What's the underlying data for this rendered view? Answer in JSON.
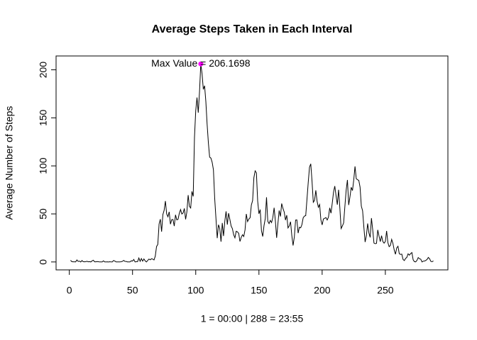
{
  "chart_data": {
    "type": "line",
    "title": "Average Steps Taken in Each Interval",
    "xlabel": "1 = 00:00 | 288 = 23:55",
    "ylabel": "Average Number of Steps",
    "color": "#000000",
    "x": [
      1,
      2,
      3,
      4,
      5,
      6,
      7,
      8,
      9,
      10,
      11,
      12,
      13,
      14,
      15,
      16,
      17,
      18,
      19,
      20,
      21,
      22,
      23,
      24,
      25,
      26,
      27,
      28,
      29,
      30,
      31,
      32,
      33,
      34,
      35,
      36,
      37,
      38,
      39,
      40,
      41,
      42,
      43,
      44,
      45,
      46,
      47,
      48,
      49,
      50,
      51,
      52,
      53,
      54,
      55,
      56,
      57,
      58,
      59,
      60,
      61,
      62,
      63,
      64,
      65,
      66,
      67,
      68,
      69,
      70,
      71,
      72,
      73,
      74,
      75,
      76,
      77,
      78,
      79,
      80,
      81,
      82,
      83,
      84,
      85,
      86,
      87,
      88,
      89,
      90,
      91,
      92,
      93,
      94,
      95,
      96,
      97,
      98,
      99,
      100,
      101,
      102,
      103,
      104,
      105,
      106,
      107,
      108,
      109,
      110,
      111,
      112,
      113,
      114,
      115,
      116,
      117,
      118,
      119,
      120,
      121,
      122,
      123,
      124,
      125,
      126,
      127,
      128,
      129,
      130,
      131,
      132,
      133,
      134,
      135,
      136,
      137,
      138,
      139,
      140,
      141,
      142,
      143,
      144,
      145,
      146,
      147,
      148,
      149,
      150,
      151,
      152,
      153,
      154,
      155,
      156,
      157,
      158,
      159,
      160,
      161,
      162,
      163,
      164,
      165,
      166,
      167,
      168,
      169,
      170,
      171,
      172,
      173,
      174,
      175,
      176,
      177,
      178,
      179,
      180,
      181,
      182,
      183,
      184,
      185,
      186,
      187,
      188,
      189,
      190,
      191,
      192,
      193,
      194,
      195,
      196,
      197,
      198,
      199,
      200,
      201,
      202,
      203,
      204,
      205,
      206,
      207,
      208,
      209,
      210,
      211,
      212,
      213,
      214,
      215,
      216,
      217,
      218,
      219,
      220,
      221,
      222,
      223,
      224,
      225,
      226,
      227,
      228,
      229,
      230,
      231,
      232,
      233,
      234,
      235,
      236,
      237,
      238,
      239,
      240,
      241,
      242,
      243,
      244,
      245,
      246,
      247,
      248,
      249,
      250,
      251,
      252,
      253,
      254,
      255,
      256,
      257,
      258,
      259,
      260,
      261,
      262,
      263,
      264,
      265,
      266,
      267,
      268,
      269,
      270,
      271,
      272,
      273,
      274,
      275,
      276,
      277,
      278,
      279,
      280,
      281,
      282,
      283,
      284,
      285,
      286,
      287,
      288
    ],
    "values": [
      1.72,
      0.34,
      0.13,
      0.15,
      0.08,
      2.09,
      0.53,
      0.87,
      0,
      1.47,
      0.3,
      0.13,
      0.32,
      0.68,
      0.15,
      0.34,
      0,
      1.11,
      1.83,
      0.17,
      0.17,
      0.38,
      0.26,
      0,
      0,
      0,
      1.13,
      0,
      0,
      0.13,
      0,
      0.23,
      0,
      0,
      1.55,
      0.94,
      0,
      0,
      0,
      0,
      0.21,
      0.62,
      1.62,
      0.58,
      0.49,
      0.08,
      0,
      0,
      1.19,
      0.94,
      2.57,
      0,
      0.34,
      0.36,
      4.11,
      0.66,
      3.49,
      0.83,
      3.11,
      1.11,
      0,
      1.57,
      3,
      2.25,
      3.32,
      2.96,
      2.09,
      6.06,
      16.02,
      18.34,
      39.45,
      44.49,
      31.49,
      49.26,
      53.77,
      63.45,
      49.96,
      47.08,
      52.15,
      39.34,
      44.02,
      44.17,
      37.36,
      49.04,
      43.81,
      44.38,
      50.51,
      54.51,
      49.92,
      50.98,
      55.68,
      44.32,
      52.26,
      69.55,
      57.85,
      56.15,
      73.38,
      68.21,
      129.43,
      157.53,
      171.15,
      155.4,
      177.3,
      206.1698,
      195.92,
      179.57,
      183.4,
      167.02,
      143.45,
      124.04,
      109.11,
      108.11,
      103.72,
      95.96,
      66.21,
      45.23,
      24.79,
      38.75,
      34.98,
      21.06,
      40.57,
      26.98,
      42.42,
      52.66,
      38.92,
      50.79,
      44.28,
      37.42,
      34.7,
      28.34,
      25.09,
      31.94,
      31.36,
      29.68,
      21.32,
      25.55,
      28.38,
      26.47,
      33.43,
      49.98,
      42.04,
      44.6,
      46.04,
      59.19,
      63.87,
      87.7,
      94.85,
      92.77,
      63.4,
      50.17,
      54.47,
      32.42,
      26.53,
      37.74,
      45.06,
      67.28,
      42.34,
      39.89,
      43.26,
      40.98,
      46.25,
      56.43,
      42.75,
      25.13,
      39.96,
      53.55,
      47.32,
      60.81,
      55.75,
      51.96,
      43.58,
      48.7,
      35.47,
      37.55,
      41.85,
      27.51,
      17.11,
      26.08,
      43.62,
      43.77,
      30.02,
      36.08,
      35.49,
      38.85,
      45.96,
      47.75,
      48.13,
      65.32,
      82.91,
      98.66,
      102.11,
      83.96,
      62.13,
      64.13,
      74.55,
      63.17,
      56.91,
      59.77,
      43.87,
      38.57,
      44.66,
      45.45,
      46.21,
      43.68,
      46.62,
      56.3,
      50.72,
      61.23,
      72.72,
      78.94,
      68.94,
      59.66,
      75.09,
      56.51,
      34.77,
      37.45,
      40.68,
      58.02,
      74.7,
      85.32,
      59.26,
      67.77,
      77.7,
      74.25,
      85.34,
      99.45,
      86.58,
      85.6,
      84.87,
      77.83,
      58.04,
      53.36,
      36.32,
      20.72,
      27.4,
      40.02,
      30.21,
      25.55,
      45.66,
      33.53,
      19.62,
      19.02,
      19.34,
      33.34,
      26.81,
      21.17,
      27.3,
      21.34,
      19.55,
      21.32,
      32.3,
      20.15,
      15.94,
      17.23,
      23.45,
      19.25,
      12.45,
      8.02,
      14.66,
      16.3,
      8.68,
      7.79,
      8.13,
      2.62,
      1.45,
      3.68,
      4.81,
      8.51,
      7.08,
      8.7,
      9.75,
      2.21,
      0.32,
      0.11,
      1.6,
      4.6,
      3.3,
      2.85,
      0,
      0.83,
      0.96,
      1.58,
      2.6,
      4.7,
      3.3,
      0.64,
      0.23,
      1.08
    ],
    "xlim": [
      -10.48,
      299.48
    ],
    "xticks": [
      0,
      50,
      100,
      150,
      200,
      250
    ],
    "ylim": [
      -8.25,
      214.42
    ],
    "yticks": [
      0,
      50,
      100,
      150,
      200
    ],
    "annotation": {
      "text": "Max Value = 206.1698",
      "x": 104,
      "y": 206.1698,
      "color": "#ff00ff"
    }
  }
}
